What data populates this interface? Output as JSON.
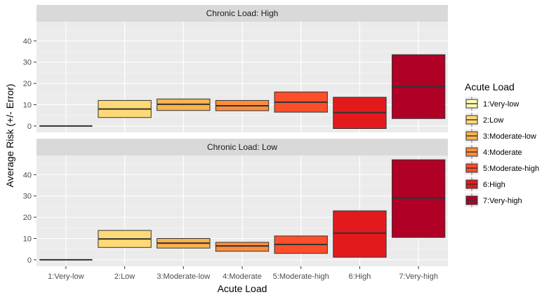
{
  "chart_data": {
    "type": "crossbar",
    "xlabel": "Acute Load",
    "ylabel": "Average Risk (+/- Error)",
    "categories": [
      "1:Very-low",
      "2:Low",
      "3:Moderate-low",
      "4:Moderate",
      "5:Moderate-high",
      "6:High",
      "7:Very-high"
    ],
    "ylim": [
      -3,
      49
    ],
    "yticks": [
      0,
      10,
      20,
      30,
      40
    ],
    "colors": [
      "#FFFFB2",
      "#FED976",
      "#FEB24C",
      "#FD8D3C",
      "#FC4E2A",
      "#E31A1C",
      "#B10026"
    ],
    "legend": {
      "title": "Acute Load",
      "position": "right",
      "entries": [
        "1:Very-low",
        "2:Low",
        "3:Moderate-low",
        "4:Moderate",
        "5:Moderate-high",
        "6:High",
        "7:Very-high"
      ]
    },
    "panels": [
      {
        "label": "Chronic Load: High",
        "mean": [
          0,
          8,
          10.2,
          9.5,
          11.2,
          6.3,
          18.5
        ],
        "lower": [
          0,
          4,
          7.3,
          7.2,
          6.5,
          -1.2,
          3.5
        ],
        "upper": [
          0,
          12,
          12.7,
          12,
          16,
          13.5,
          33.5
        ]
      },
      {
        "label": "Chronic Load: Low",
        "mean": [
          0,
          9.8,
          7.8,
          6.5,
          7.2,
          12.5,
          29
        ],
        "lower": [
          0,
          5.8,
          5.5,
          4,
          3,
          1.2,
          10.5
        ],
        "upper": [
          0,
          13.8,
          10,
          8.2,
          11.2,
          23,
          47
        ]
      }
    ]
  }
}
